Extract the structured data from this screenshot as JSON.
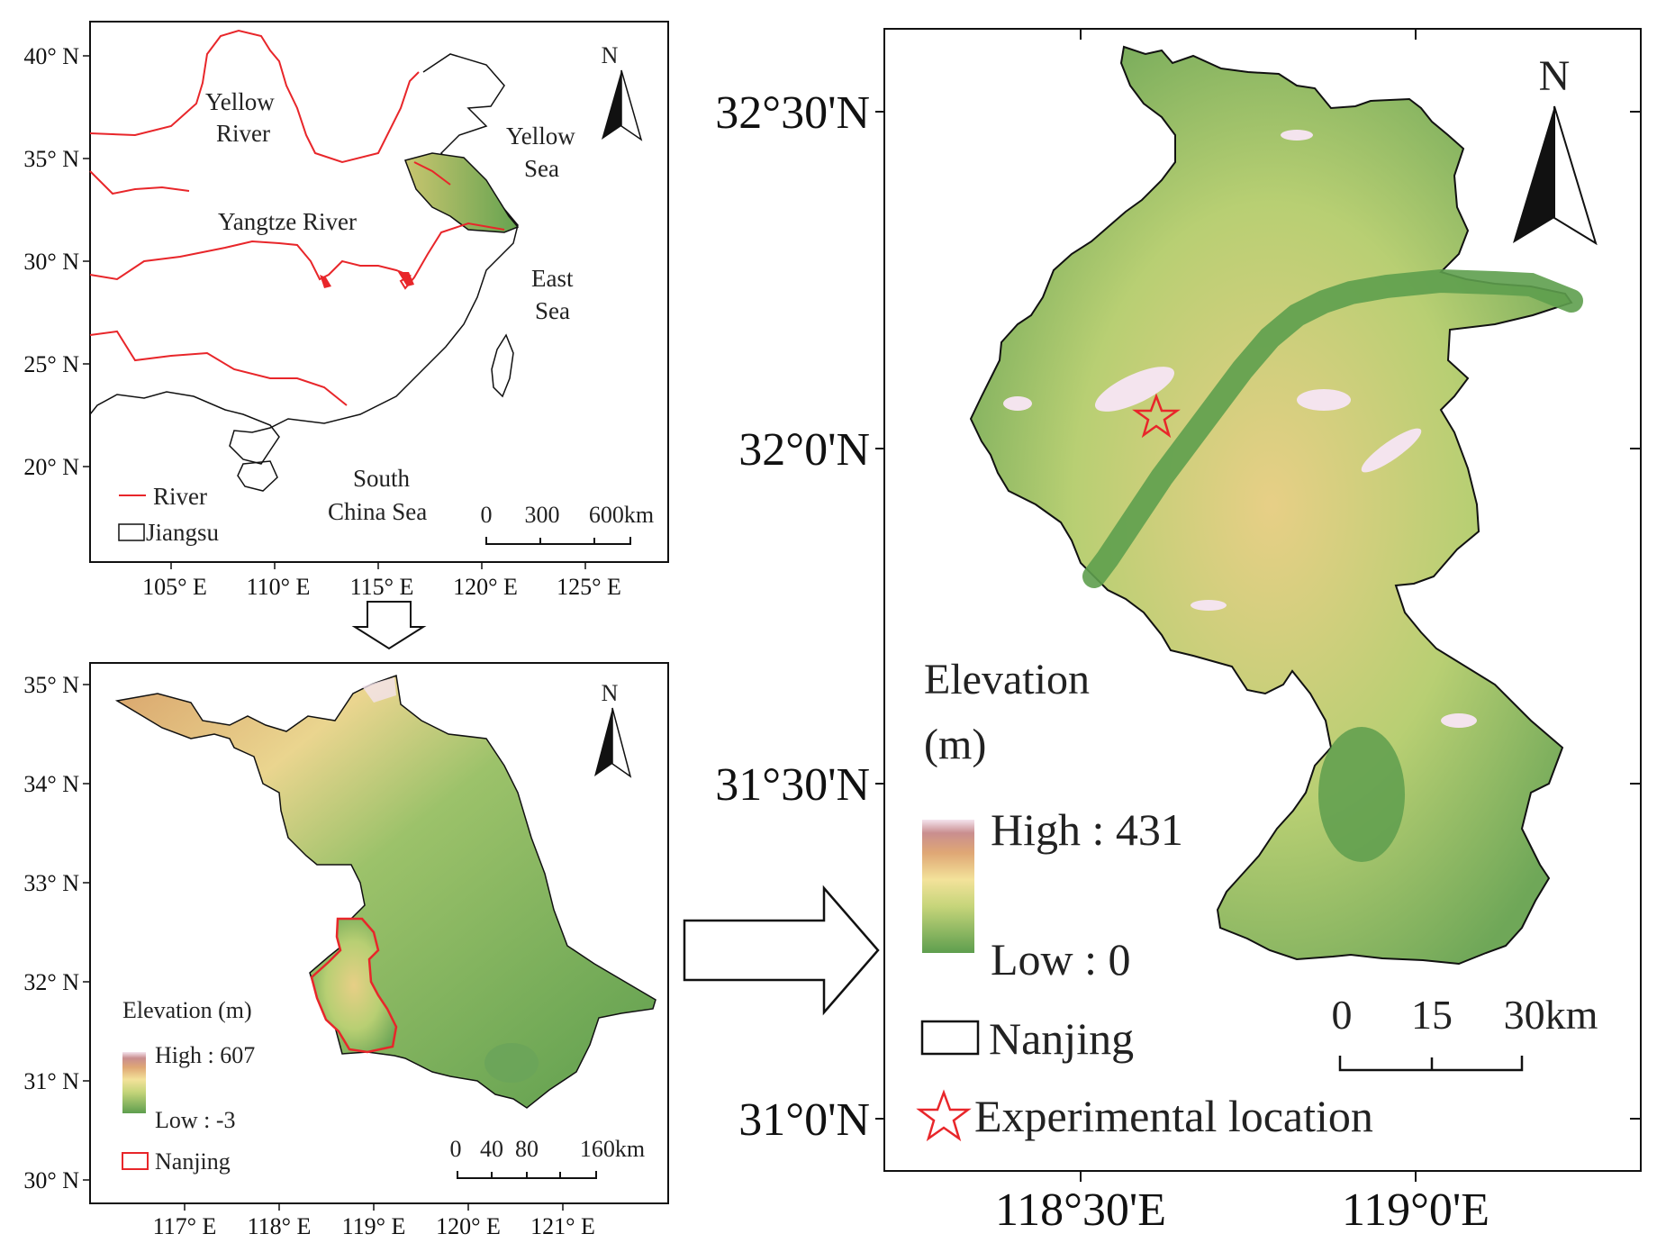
{
  "panel_a": {
    "lat_ticks": [
      "40° N",
      "35° N",
      "30° N",
      "25° N",
      "20° N"
    ],
    "lon_ticks": [
      "105° E",
      "110° E",
      "115° E",
      "120° E",
      "125° E"
    ],
    "north": "N",
    "labels": {
      "yellow_river_1": "Yellow",
      "yellow_river_2": "River",
      "yellow_sea_1": "Yellow",
      "yellow_sea_2": "Sea",
      "yangtze_river": "Yangtze River",
      "east_sea_1": "East",
      "east_sea_2": "Sea",
      "south_china_sea_1": "South",
      "south_china_sea_2": "China Sea"
    },
    "legend": {
      "river": "River",
      "jiangsu": "Jiangsu"
    },
    "scale": {
      "t0": "0",
      "t1": "300",
      "t2": "600km"
    }
  },
  "panel_b": {
    "lat_ticks": [
      "35° N",
      "34° N",
      "33° N",
      "32° N",
      "31° N",
      "30° N"
    ],
    "lon_ticks": [
      "117° E",
      "118° E",
      "119° E",
      "120° E",
      "121° E"
    ],
    "north": "N",
    "legend": {
      "title": "Elevation (m)",
      "high": "High : 607",
      "low": "Low : -3",
      "nanjing": "Nanjing"
    },
    "scale": {
      "t0": "0",
      "t1": "40",
      "t2": "80",
      "t3": "160km"
    }
  },
  "panel_c": {
    "lat_ticks": [
      "32°30'N",
      "32°0'N",
      "31°30'N",
      "31°0'N"
    ],
    "lon_ticks": [
      "118°30'E",
      "119°0'E"
    ],
    "north": "N",
    "legend": {
      "title_1": "Elevation",
      "title_2": "(m)",
      "high": "High : 431",
      "low": "Low : 0",
      "nanjing": "Nanjing",
      "experimental": "Experimental location"
    },
    "scale": {
      "t0": "0",
      "t1": "15",
      "t2": "30km"
    }
  },
  "colors": {
    "river": "#e8262a",
    "coast": "#111111",
    "elev_low": "#5e9e4e",
    "elev_mid": "#f3e29a",
    "elev_high": "#f4e4ee",
    "star": "#e8262a"
  }
}
